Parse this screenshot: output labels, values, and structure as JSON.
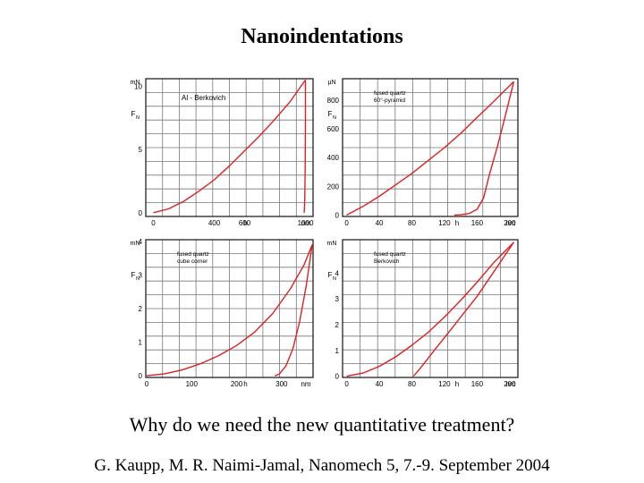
{
  "slide": {
    "title": "Nanoindentations",
    "question": "Why do we need the new quantitative treatment?",
    "footer": "G. Kaupp, M. R. Naimi-Jamal, Nanomech 5, 7.-9. September 2004"
  },
  "colors": {
    "curve": "#e02020",
    "grid": "#777777",
    "border": "#111111"
  },
  "chart_data": [
    {
      "type": "line",
      "panel": "top-left",
      "annotation": "Al - Berkovich",
      "y_unit": "mN",
      "y_symbol": "F",
      "y_subscript": "N",
      "x_unit_label": "nm",
      "x_symbol": "h",
      "xlim": [
        -50,
        1050
      ],
      "ylim": [
        -0.3,
        10.6
      ],
      "x_ticks": [
        0,
        400,
        600,
        1000
      ],
      "x_tick_labels": [
        "0",
        "400",
        "600",
        "1000"
      ],
      "y_ticks": [
        0,
        5,
        10
      ],
      "y_tick_labels": [
        "0",
        "5",
        "10"
      ],
      "series": [
        {
          "name": "loading",
          "x": [
            0,
            100,
            200,
            300,
            400,
            500,
            600,
            700,
            800,
            900,
            1000
          ],
          "y": [
            0,
            0.3,
            0.9,
            1.7,
            2.6,
            3.7,
            4.9,
            6.1,
            7.4,
            8.8,
            10.5
          ]
        },
        {
          "name": "unloading",
          "x": [
            1000,
            1000,
            998,
            995,
            992
          ],
          "y": [
            10.5,
            7,
            3.5,
            1,
            0
          ]
        }
      ]
    },
    {
      "type": "line",
      "panel": "top-right",
      "annotation": "fused quartz\n60°-pyramid",
      "y_unit": "µN",
      "y_symbol": "F",
      "y_subscript": "N",
      "x_unit_label": "nm",
      "x_symbol": "h",
      "xlim": [
        -5,
        210
      ],
      "ylim": [
        -10,
        950
      ],
      "x_ticks": [
        0,
        40,
        80,
        120,
        160,
        200
      ],
      "x_tick_labels": [
        "0",
        "40",
        "80",
        "120",
        "160",
        "200"
      ],
      "y_ticks": [
        0,
        200,
        400,
        600,
        800
      ],
      "y_tick_labels": [
        "0",
        "200",
        "400",
        "600",
        "800"
      ],
      "series": [
        {
          "name": "loading",
          "x": [
            0,
            20,
            40,
            60,
            80,
            100,
            120,
            140,
            160,
            180,
            205
          ],
          "y": [
            0,
            60,
            130,
            210,
            290,
            380,
            470,
            570,
            680,
            790,
            930
          ]
        },
        {
          "name": "unloading",
          "x": [
            205,
            195,
            185,
            175,
            168,
            160,
            150,
            140,
            132
          ],
          "y": [
            930,
            700,
            480,
            280,
            120,
            40,
            10,
            2,
            0
          ]
        }
      ]
    },
    {
      "type": "line",
      "panel": "bottom-left",
      "annotation": "fused quartz\ncube corner",
      "y_unit": "mN",
      "y_symbol": "F",
      "y_subscript": "N",
      "x_unit_label": "nm",
      "x_symbol": "h",
      "xlim": [
        -2,
        370
      ],
      "ylim": [
        -0.05,
        4.05
      ],
      "x_ticks": [
        0,
        100,
        200,
        300
      ],
      "x_tick_labels": [
        "0",
        "100",
        "200",
        "300"
      ],
      "y_ticks": [
        0,
        1,
        2,
        3,
        4
      ],
      "y_tick_labels": [
        "0",
        "1",
        "2",
        "3",
        "4"
      ],
      "series": [
        {
          "name": "loading",
          "x": [
            0,
            40,
            80,
            120,
            160,
            200,
            240,
            280,
            320,
            350,
            368
          ],
          "y": [
            0,
            0.06,
            0.18,
            0.36,
            0.6,
            0.9,
            1.3,
            1.85,
            2.6,
            3.3,
            3.9
          ]
        },
        {
          "name": "unloading",
          "x": [
            368,
            355,
            340,
            325,
            310,
            295,
            285
          ],
          "y": [
            3.9,
            2.7,
            1.6,
            0.8,
            0.3,
            0.05,
            0
          ]
        }
      ]
    },
    {
      "type": "line",
      "panel": "bottom-right",
      "annotation": "fused quartz\nBerkovich",
      "y_unit": "mN",
      "y_symbol": "F",
      "y_subscript": "N",
      "x_unit_label": "nm",
      "x_symbol": "h",
      "xlim": [
        -5,
        210
      ],
      "ylim": [
        -0.05,
        5.3
      ],
      "x_ticks": [
        0,
        40,
        80,
        120,
        160,
        200
      ],
      "x_tick_labels": [
        "0",
        "40",
        "80",
        "120",
        "160",
        "200"
      ],
      "y_ticks": [
        0,
        1,
        2,
        3,
        4
      ],
      "y_tick_labels": [
        "0",
        "1",
        "2",
        "3",
        "4"
      ],
      "series": [
        {
          "name": "loading",
          "x": [
            0,
            20,
            40,
            60,
            80,
            100,
            120,
            140,
            160,
            180,
            205
          ],
          "y": [
            0,
            0.12,
            0.38,
            0.75,
            1.2,
            1.7,
            2.3,
            2.95,
            3.65,
            4.4,
            5.2
          ]
        },
        {
          "name": "unloading",
          "x": [
            205,
            190,
            175,
            160,
            145,
            130,
            115,
            100,
            90,
            82
          ],
          "y": [
            5.2,
            4.5,
            3.8,
            3.1,
            2.5,
            1.9,
            1.3,
            0.7,
            0.3,
            0
          ]
        }
      ]
    }
  ]
}
